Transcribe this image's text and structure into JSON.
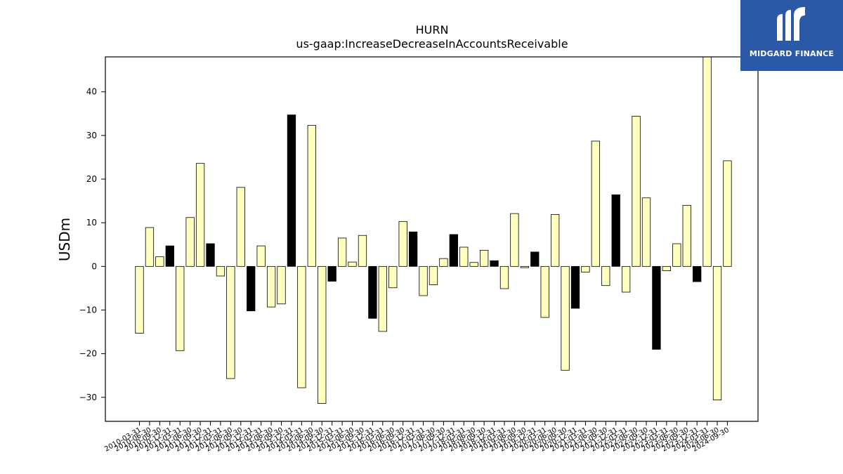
{
  "chart_data": {
    "type": "bar",
    "title": "HURN",
    "subtitle": "us-gaap:IncreaseDecreaseInAccountsReceivable",
    "xlabel": "",
    "ylabel": "USDm",
    "ylim": [
      -35.5,
      48
    ],
    "yticks": [
      -30,
      -20,
      -10,
      0,
      10,
      20,
      30,
      40
    ],
    "grid": false,
    "categories": [
      "2010-03-31",
      "2010-06-30",
      "2010-09-30",
      "2010-12-31",
      "2011-03-31",
      "2011-06-30",
      "2011-09-30",
      "2011-12-31",
      "2012-03-31",
      "2012-06-30",
      "2012-09-30",
      "2012-12-31",
      "2013-03-31",
      "2013-06-30",
      "2013-09-30",
      "2013-12-31",
      "2014-03-31",
      "2014-06-30",
      "2014-09-30",
      "2014-12-31",
      "2015-03-31",
      "2015-06-30",
      "2015-09-30",
      "2015-12-31",
      "2016-03-31",
      "2016-06-30",
      "2016-09-30",
      "2016-12-31",
      "2017-03-31",
      "2017-06-30",
      "2017-09-30",
      "2017-12-31",
      "2018-03-31",
      "2018-06-30",
      "2018-09-30",
      "2018-12-31",
      "2019-03-31",
      "2019-06-30",
      "2019-09-30",
      "2019-12-31",
      "2020-03-31",
      "2020-06-30",
      "2020-09-30",
      "2020-12-31",
      "2021-03-31",
      "2021-06-30",
      "2021-09-30",
      "2021-12-31",
      "2022-03-31",
      "2022-06-30",
      "2022-09-30",
      "2022-12-31",
      "2023-03-31",
      "2023-06-30",
      "2023-09-30",
      "2023-12-31",
      "2024-03-31",
      "2024-06-30",
      "2024-09-30"
    ],
    "values": [
      -15.3,
      8.9,
      2.2,
      4.7,
      -19.3,
      11.2,
      23.6,
      5.2,
      -2.2,
      -25.7,
      18.1,
      -10.2,
      4.7,
      -9.3,
      -8.6,
      34.7,
      -27.8,
      32.3,
      -31.4,
      -3.4,
      6.5,
      1.0,
      7.1,
      -11.9,
      -14.9,
      -4.9,
      10.3,
      7.9,
      -6.7,
      -4.2,
      1.8,
      7.3,
      4.4,
      0.9,
      3.7,
      1.3,
      -5.1,
      12.1,
      -0.3,
      3.3,
      -11.7,
      11.9,
      -23.8,
      -9.6,
      -1.3,
      28.7,
      -4.4,
      16.4,
      -5.9,
      34.4,
      15.7,
      -19.0,
      -1.0,
      5.2,
      14.0,
      -3.5,
      48.0,
      -30.6,
      24.2
    ],
    "highlight": [
      false,
      false,
      false,
      true,
      false,
      false,
      false,
      true,
      false,
      false,
      false,
      true,
      false,
      false,
      false,
      true,
      false,
      false,
      false,
      true,
      false,
      false,
      false,
      true,
      false,
      false,
      false,
      true,
      false,
      false,
      false,
      true,
      false,
      false,
      false,
      true,
      false,
      false,
      false,
      true,
      false,
      false,
      false,
      true,
      false,
      false,
      false,
      true,
      false,
      false,
      false,
      true,
      false,
      false,
      false,
      true,
      false,
      false,
      false
    ],
    "colors": {
      "bar": "#ffffc0",
      "highlight": "#000000",
      "edge": "#000000"
    }
  },
  "logo": {
    "text": "MIDGARD FINANCE",
    "color": "#2b59a6"
  }
}
